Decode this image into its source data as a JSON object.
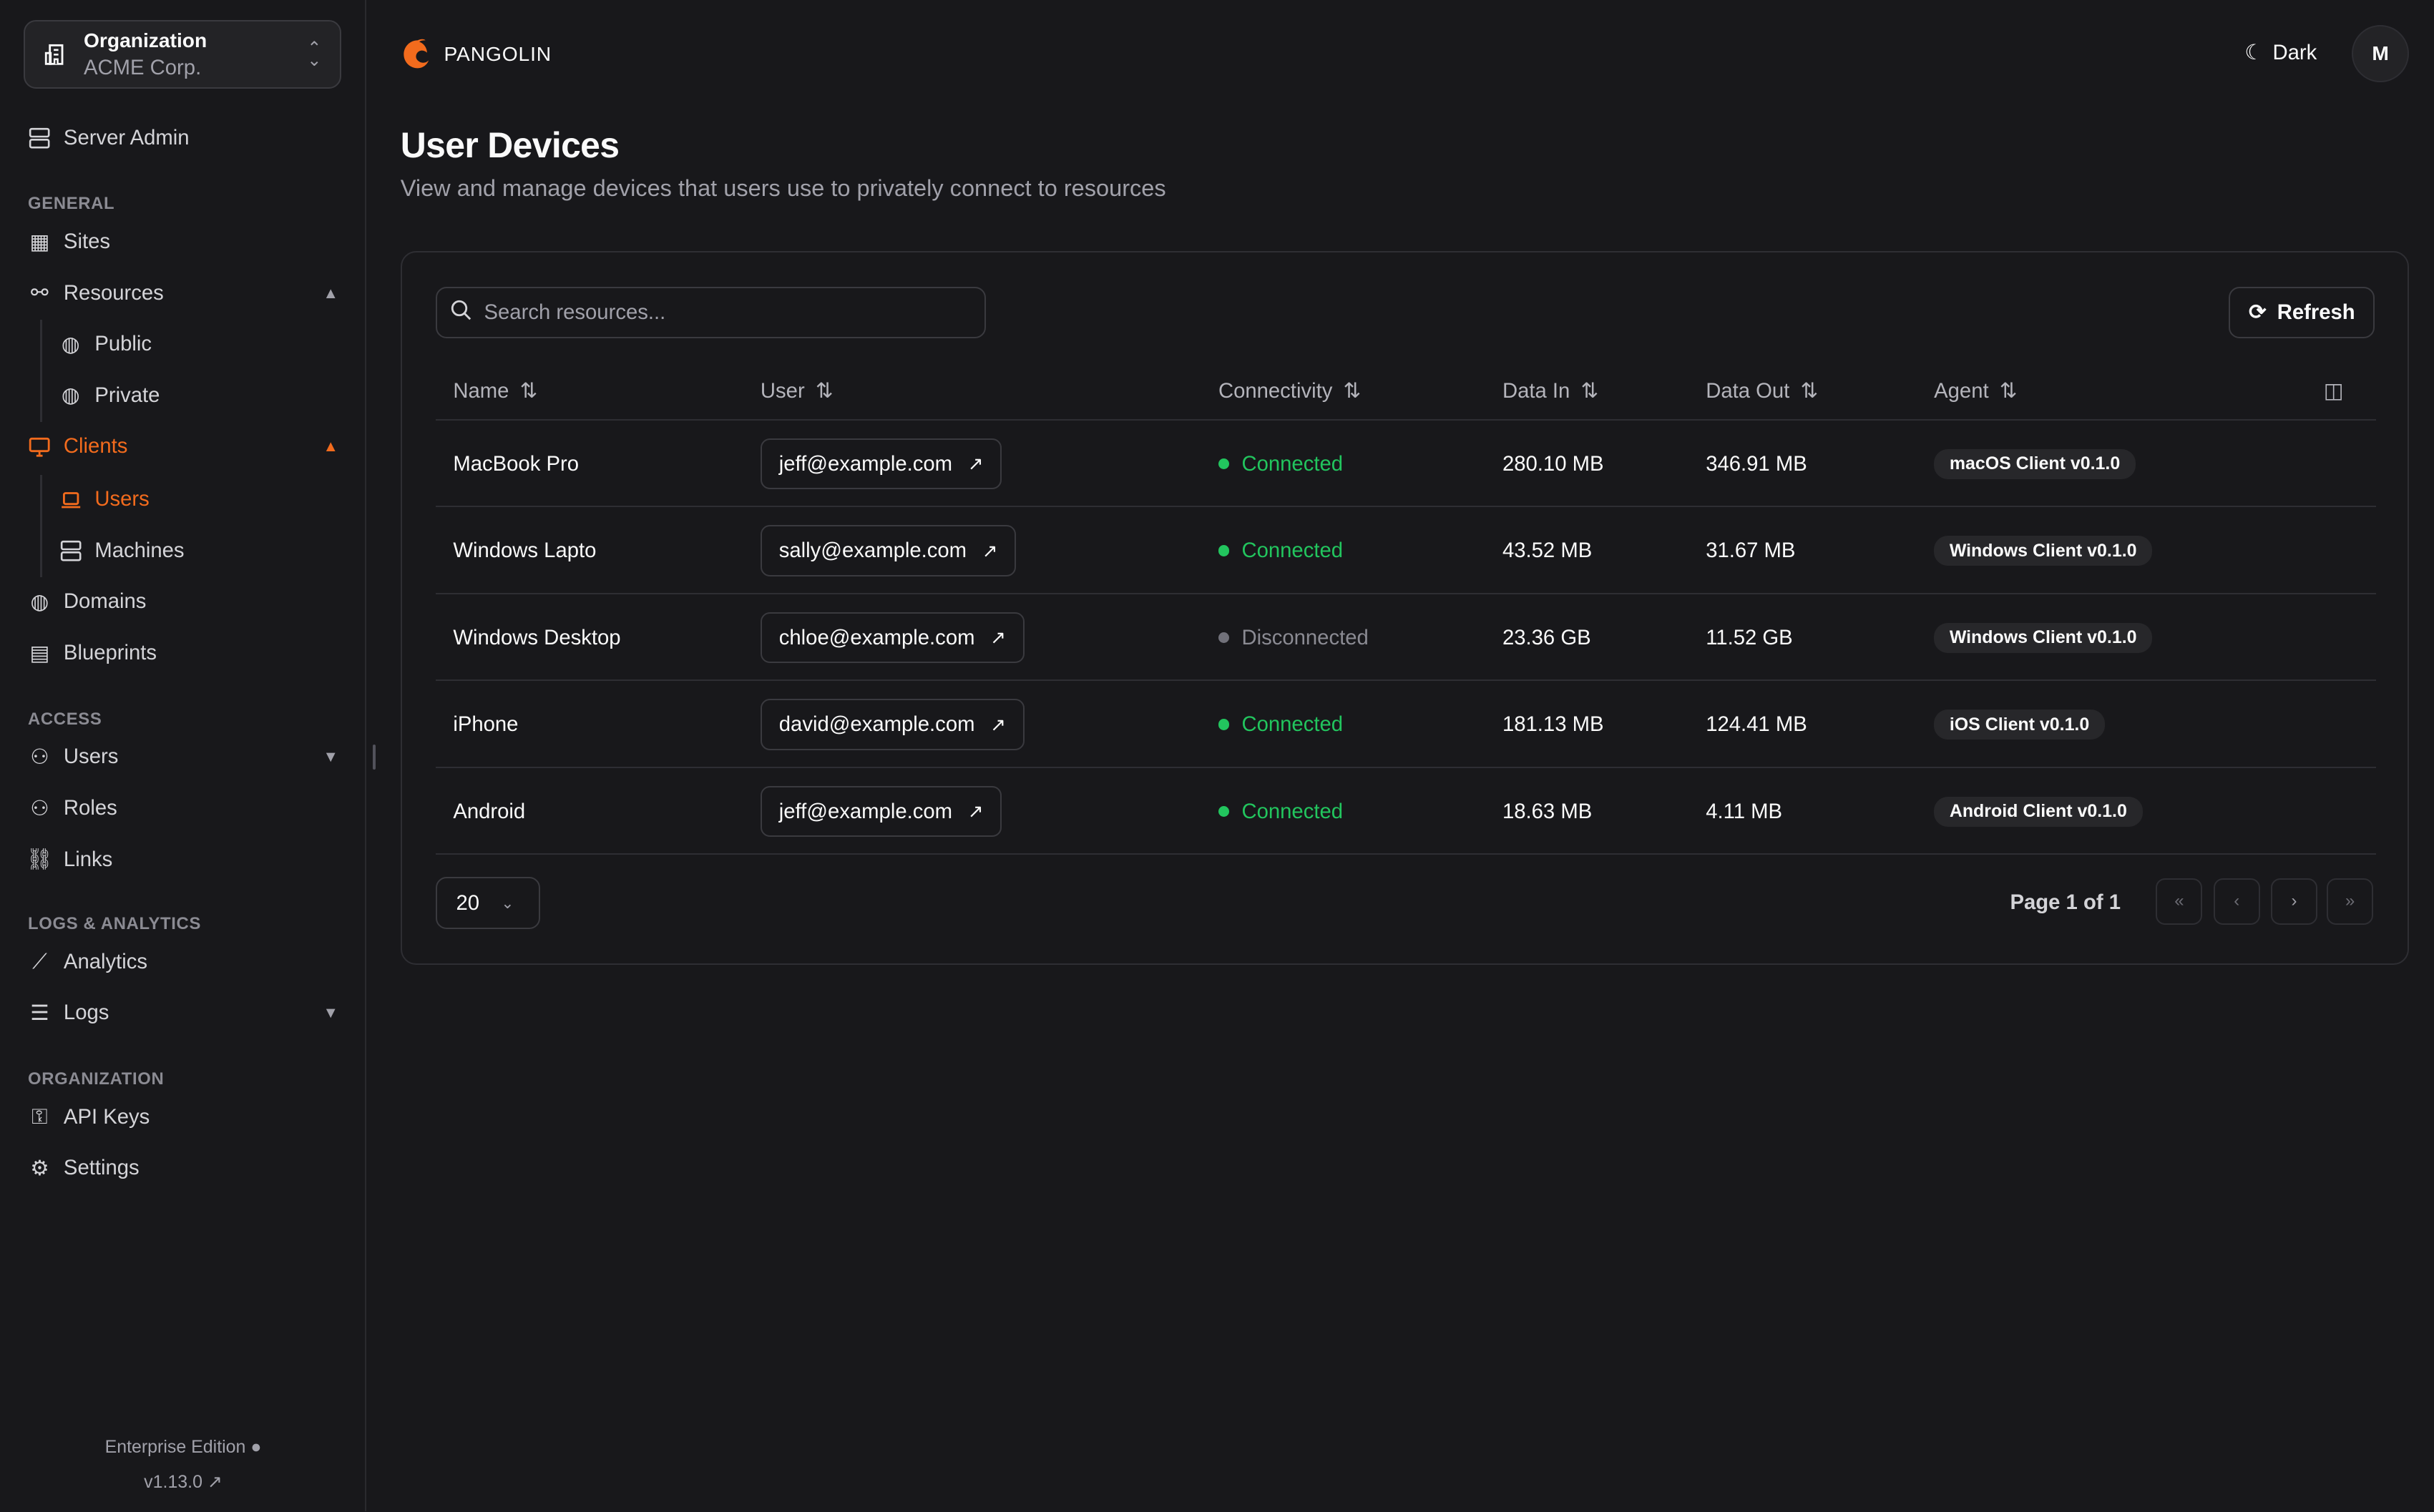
{
  "org": {
    "label": "Organization",
    "name": "ACME Corp."
  },
  "sidebar": {
    "server_admin": "Server Admin",
    "sections": {
      "general": "GENERAL",
      "access": "ACCESS",
      "logs": "LOGS & ANALYTICS",
      "organization": "ORGANIZATION"
    },
    "items": {
      "sites": "Sites",
      "resources": "Resources",
      "public": "Public",
      "private": "Private",
      "clients": "Clients",
      "users": "Users",
      "machines": "Machines",
      "domains": "Domains",
      "blueprints": "Blueprints",
      "access_users": "Users",
      "roles": "Roles",
      "links": "Links",
      "analytics": "Analytics",
      "logs": "Logs",
      "api_keys": "API Keys",
      "settings": "Settings"
    },
    "edition": "Enterprise Edition",
    "version": "v1.13.0"
  },
  "header": {
    "brand": "PANGOLIN",
    "theme": "Dark",
    "avatar": "M"
  },
  "page": {
    "title": "User Devices",
    "description": "View and manage devices that users use to privately connect to resources"
  },
  "toolbar": {
    "search_placeholder": "Search resources...",
    "refresh": "Refresh"
  },
  "table": {
    "columns": [
      "Name",
      "User",
      "Connectivity",
      "Data In",
      "Data Out",
      "Agent"
    ],
    "rows": [
      {
        "name": "MacBook Pro",
        "user": "jeff@example.com",
        "status": "Connected",
        "in": "280.10 MB",
        "out": "346.91 MB",
        "agent": "macOS Client v0.1.0"
      },
      {
        "name": "Windows Lapto",
        "user": "sally@example.com",
        "status": "Connected",
        "in": "43.52 MB",
        "out": "31.67 MB",
        "agent": "Windows Client v0.1.0"
      },
      {
        "name": "Windows Desktop",
        "user": "chloe@example.com",
        "status": "Disconnected",
        "in": "23.36 GB",
        "out": "11.52 GB",
        "agent": "Windows Client v0.1.0"
      },
      {
        "name": "iPhone",
        "user": "david@example.com",
        "status": "Connected",
        "in": "181.13 MB",
        "out": "124.41 MB",
        "agent": "iOS Client v0.1.0"
      },
      {
        "name": "Android",
        "user": "jeff@example.com",
        "status": "Connected",
        "in": "18.63 MB",
        "out": "4.11 MB",
        "agent": "Android Client v0.1.0"
      }
    ]
  },
  "pagination": {
    "page_size": "20",
    "page_info": "Page 1 of 1"
  },
  "colors": {
    "accent": "#f26b1d",
    "connected": "#22c55e",
    "disconnected": "#71717a",
    "background": "#18181b"
  }
}
